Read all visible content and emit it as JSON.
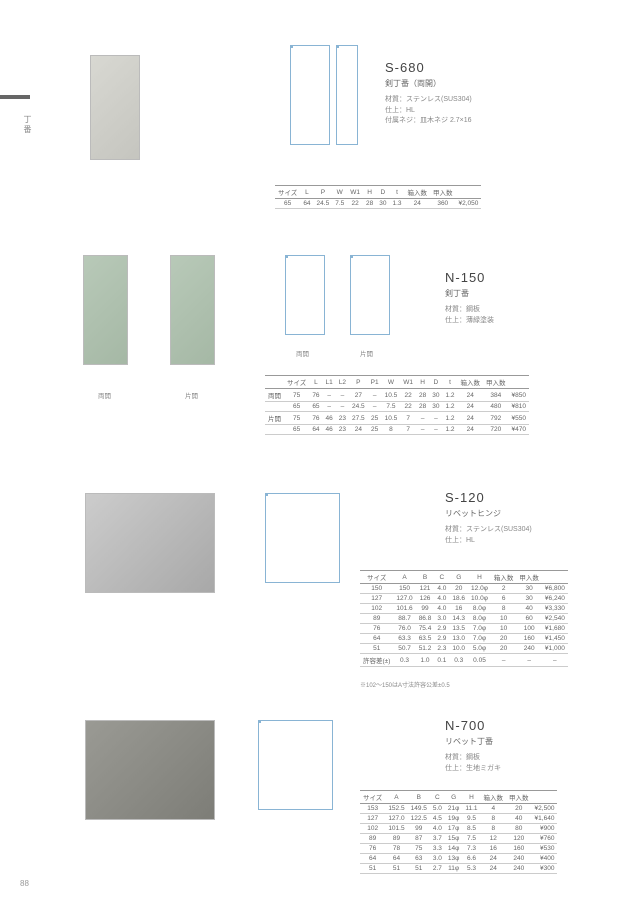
{
  "page_number": "88",
  "side_label": "丁番",
  "products": [
    {
      "code": "S-680",
      "name": "剣丁番（両開）",
      "specs": [
        "材質：ステンレス(SUS304)",
        "仕上：HL",
        "付属ネジ：皿木ネジ 2.7×16"
      ],
      "table": {
        "headers": [
          "サイズ",
          "L",
          "P",
          "W",
          "W1",
          "H",
          "D",
          "t",
          "箱入数",
          "甲入数",
          ""
        ],
        "rows": [
          [
            "65",
            "64",
            "24.5",
            "7.5",
            "22",
            "28",
            "30",
            "1.3",
            "24",
            "360",
            "¥2,050"
          ]
        ]
      }
    },
    {
      "code": "N-150",
      "name": "剣丁番",
      "specs": [
        "材質：鋼板",
        "仕上：薄緑塗装"
      ],
      "diagram_labels": [
        "両開",
        "片開"
      ],
      "image_labels": [
        "両開",
        "片開"
      ],
      "table": {
        "headers": [
          "",
          "サイズ",
          "L",
          "L1",
          "L2",
          "P",
          "P1",
          "W",
          "W1",
          "H",
          "D",
          "t",
          "箱入数",
          "甲入数",
          ""
        ],
        "rows": [
          [
            "両開",
            "75",
            "76",
            "–",
            "–",
            "27",
            "–",
            "10.5",
            "22",
            "28",
            "30",
            "1.2",
            "24",
            "384",
            "¥850"
          ],
          [
            "",
            "65",
            "65",
            "–",
            "–",
            "24.5",
            "–",
            "7.5",
            "22",
            "28",
            "30",
            "1.2",
            "24",
            "480",
            "¥810"
          ],
          [
            "片開",
            "75",
            "76",
            "46",
            "23",
            "27.5",
            "25",
            "10.5",
            "7",
            "–",
            "–",
            "1.2",
            "24",
            "792",
            "¥550"
          ],
          [
            "",
            "65",
            "64",
            "46",
            "23",
            "24",
            "25",
            "8",
            "7",
            "–",
            "–",
            "1.2",
            "24",
            "720",
            "¥470"
          ]
        ]
      }
    },
    {
      "code": "S-120",
      "name": "リベットヒンジ",
      "specs": [
        "材質：ステンレス(SUS304)",
        "仕上：HL"
      ],
      "table": {
        "headers": [
          "サイズ",
          "A",
          "B",
          "C",
          "G",
          "H",
          "箱入数",
          "甲入数",
          ""
        ],
        "rows": [
          [
            "150",
            "150",
            "121",
            "4.0",
            "20",
            "12.0φ",
            "2",
            "30",
            "¥6,800"
          ],
          [
            "127",
            "127.0",
            "126",
            "4.0",
            "18.6",
            "10.0φ",
            "6",
            "30",
            "¥6,240"
          ],
          [
            "102",
            "101.6",
            "99",
            "4.0",
            "16",
            "8.0φ",
            "8",
            "40",
            "¥3,330"
          ],
          [
            "89",
            "88.7",
            "86.8",
            "3.0",
            "14.3",
            "8.0φ",
            "10",
            "60",
            "¥2,540"
          ],
          [
            "76",
            "76.0",
            "75.4",
            "2.9",
            "13.5",
            "7.0φ",
            "10",
            "100",
            "¥1,680"
          ],
          [
            "64",
            "63.3",
            "63.5",
            "2.9",
            "13.0",
            "7.0φ",
            "20",
            "160",
            "¥1,450"
          ],
          [
            "51",
            "50.7",
            "51.2",
            "2.3",
            "10.0",
            "5.0φ",
            "20",
            "240",
            "¥1,000"
          ],
          [
            "許容差(±)",
            "0.3",
            "1.0",
            "0.1",
            "0.3",
            "0.05",
            "–",
            "–",
            "–"
          ]
        ]
      },
      "footnote": "※102～150はA寸法許容公差±0.5"
    },
    {
      "code": "N-700",
      "name": "リベット丁番",
      "specs": [
        "材質：鋼板",
        "仕上：生地ミガキ"
      ],
      "table": {
        "headers": [
          "サイズ",
          "A",
          "B",
          "C",
          "G",
          "H",
          "箱入数",
          "甲入数",
          ""
        ],
        "rows": [
          [
            "153",
            "152.5",
            "149.5",
            "5.0",
            "21φ",
            "11.1",
            "4",
            "20",
            "¥2,500"
          ],
          [
            "127",
            "127.0",
            "122.5",
            "4.5",
            "19φ",
            "9.5",
            "8",
            "40",
            "¥1,640"
          ],
          [
            "102",
            "101.5",
            "99",
            "4.0",
            "17φ",
            "8.5",
            "8",
            "80",
            "¥900"
          ],
          [
            "89",
            "89",
            "87",
            "3.7",
            "15φ",
            "7.5",
            "12",
            "120",
            "¥760"
          ],
          [
            "76",
            "78",
            "75",
            "3.3",
            "14φ",
            "7.3",
            "16",
            "160",
            "¥530"
          ],
          [
            "64",
            "64",
            "63",
            "3.0",
            "13φ",
            "6.6",
            "24",
            "240",
            "¥400"
          ],
          [
            "51",
            "51",
            "51",
            "2.7",
            "11φ",
            "5.3",
            "24",
            "240",
            "¥300"
          ]
        ]
      }
    }
  ]
}
